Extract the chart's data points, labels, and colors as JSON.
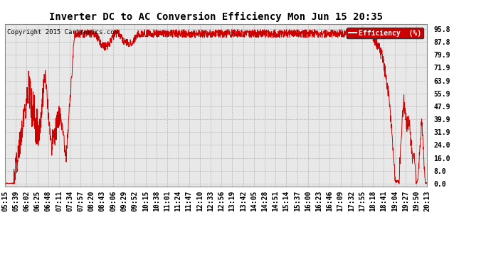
{
  "title": "Inverter DC to AC Conversion Efficiency Mon Jun 15 20:35",
  "copyright": "Copyright 2015 Cartronics.com",
  "legend_label": "Efficiency  (%)",
  "legend_bg": "#cc0000",
  "legend_fg": "#ffffff",
  "line_color": "#cc0000",
  "bg_color": "#ffffff",
  "plot_bg": "#e8e8e8",
  "grid_color": "#aaaaaa",
  "yticks": [
    0.0,
    8.0,
    16.0,
    24.0,
    31.9,
    39.9,
    47.9,
    55.9,
    63.9,
    71.9,
    79.9,
    87.8,
    95.8
  ],
  "ylim": [
    -1.5,
    99
  ],
  "xtick_labels": [
    "05:15",
    "05:39",
    "06:02",
    "06:25",
    "06:48",
    "07:11",
    "07:34",
    "07:57",
    "08:20",
    "08:43",
    "09:06",
    "09:29",
    "09:52",
    "10:15",
    "10:38",
    "11:01",
    "11:24",
    "11:47",
    "12:10",
    "12:33",
    "12:56",
    "13:19",
    "13:42",
    "14:05",
    "14:28",
    "14:51",
    "15:14",
    "15:37",
    "16:00",
    "16:23",
    "16:46",
    "17:09",
    "17:32",
    "17:55",
    "18:18",
    "18:41",
    "19:04",
    "19:27",
    "19:50",
    "20:13"
  ],
  "title_fontsize": 10,
  "label_fontsize": 7,
  "copyright_fontsize": 6.5,
  "figsize": [
    6.9,
    3.75
  ],
  "dpi": 100
}
